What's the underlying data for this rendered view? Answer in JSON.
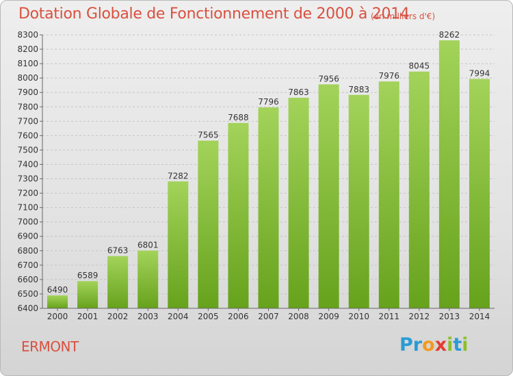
{
  "title": "Dotation Globale de Fonctionnement de 2000 à 2014",
  "unit_note": "(en milliers d'€)",
  "town": "ERMONT",
  "logo": {
    "text": "Proxiti",
    "letters": [
      "P",
      "r",
      "o",
      "x",
      "i",
      "t",
      "i"
    ]
  },
  "colors": {
    "bar_top": "#a3d35a",
    "bar_bottom": "#66a21c",
    "title": "#d9503f"
  },
  "chart_data": {
    "type": "bar",
    "categories": [
      "2000",
      "2001",
      "2002",
      "2003",
      "2004",
      "2005",
      "2006",
      "2007",
      "2008",
      "2009",
      "2010",
      "2011",
      "2012",
      "2013",
      "2014"
    ],
    "values": [
      6490,
      6589,
      6763,
      6801,
      7282,
      7565,
      7688,
      7796,
      7863,
      7956,
      7883,
      7976,
      8045,
      8262,
      7994
    ],
    "ylim": [
      6400,
      8300
    ],
    "yticks": [
      6400,
      6500,
      6600,
      6700,
      6800,
      6900,
      7000,
      7100,
      7200,
      7300,
      7400,
      7500,
      7600,
      7700,
      7800,
      7900,
      8000,
      8100,
      8200,
      8300
    ],
    "grid": true,
    "xlabel": "",
    "ylabel": ""
  }
}
